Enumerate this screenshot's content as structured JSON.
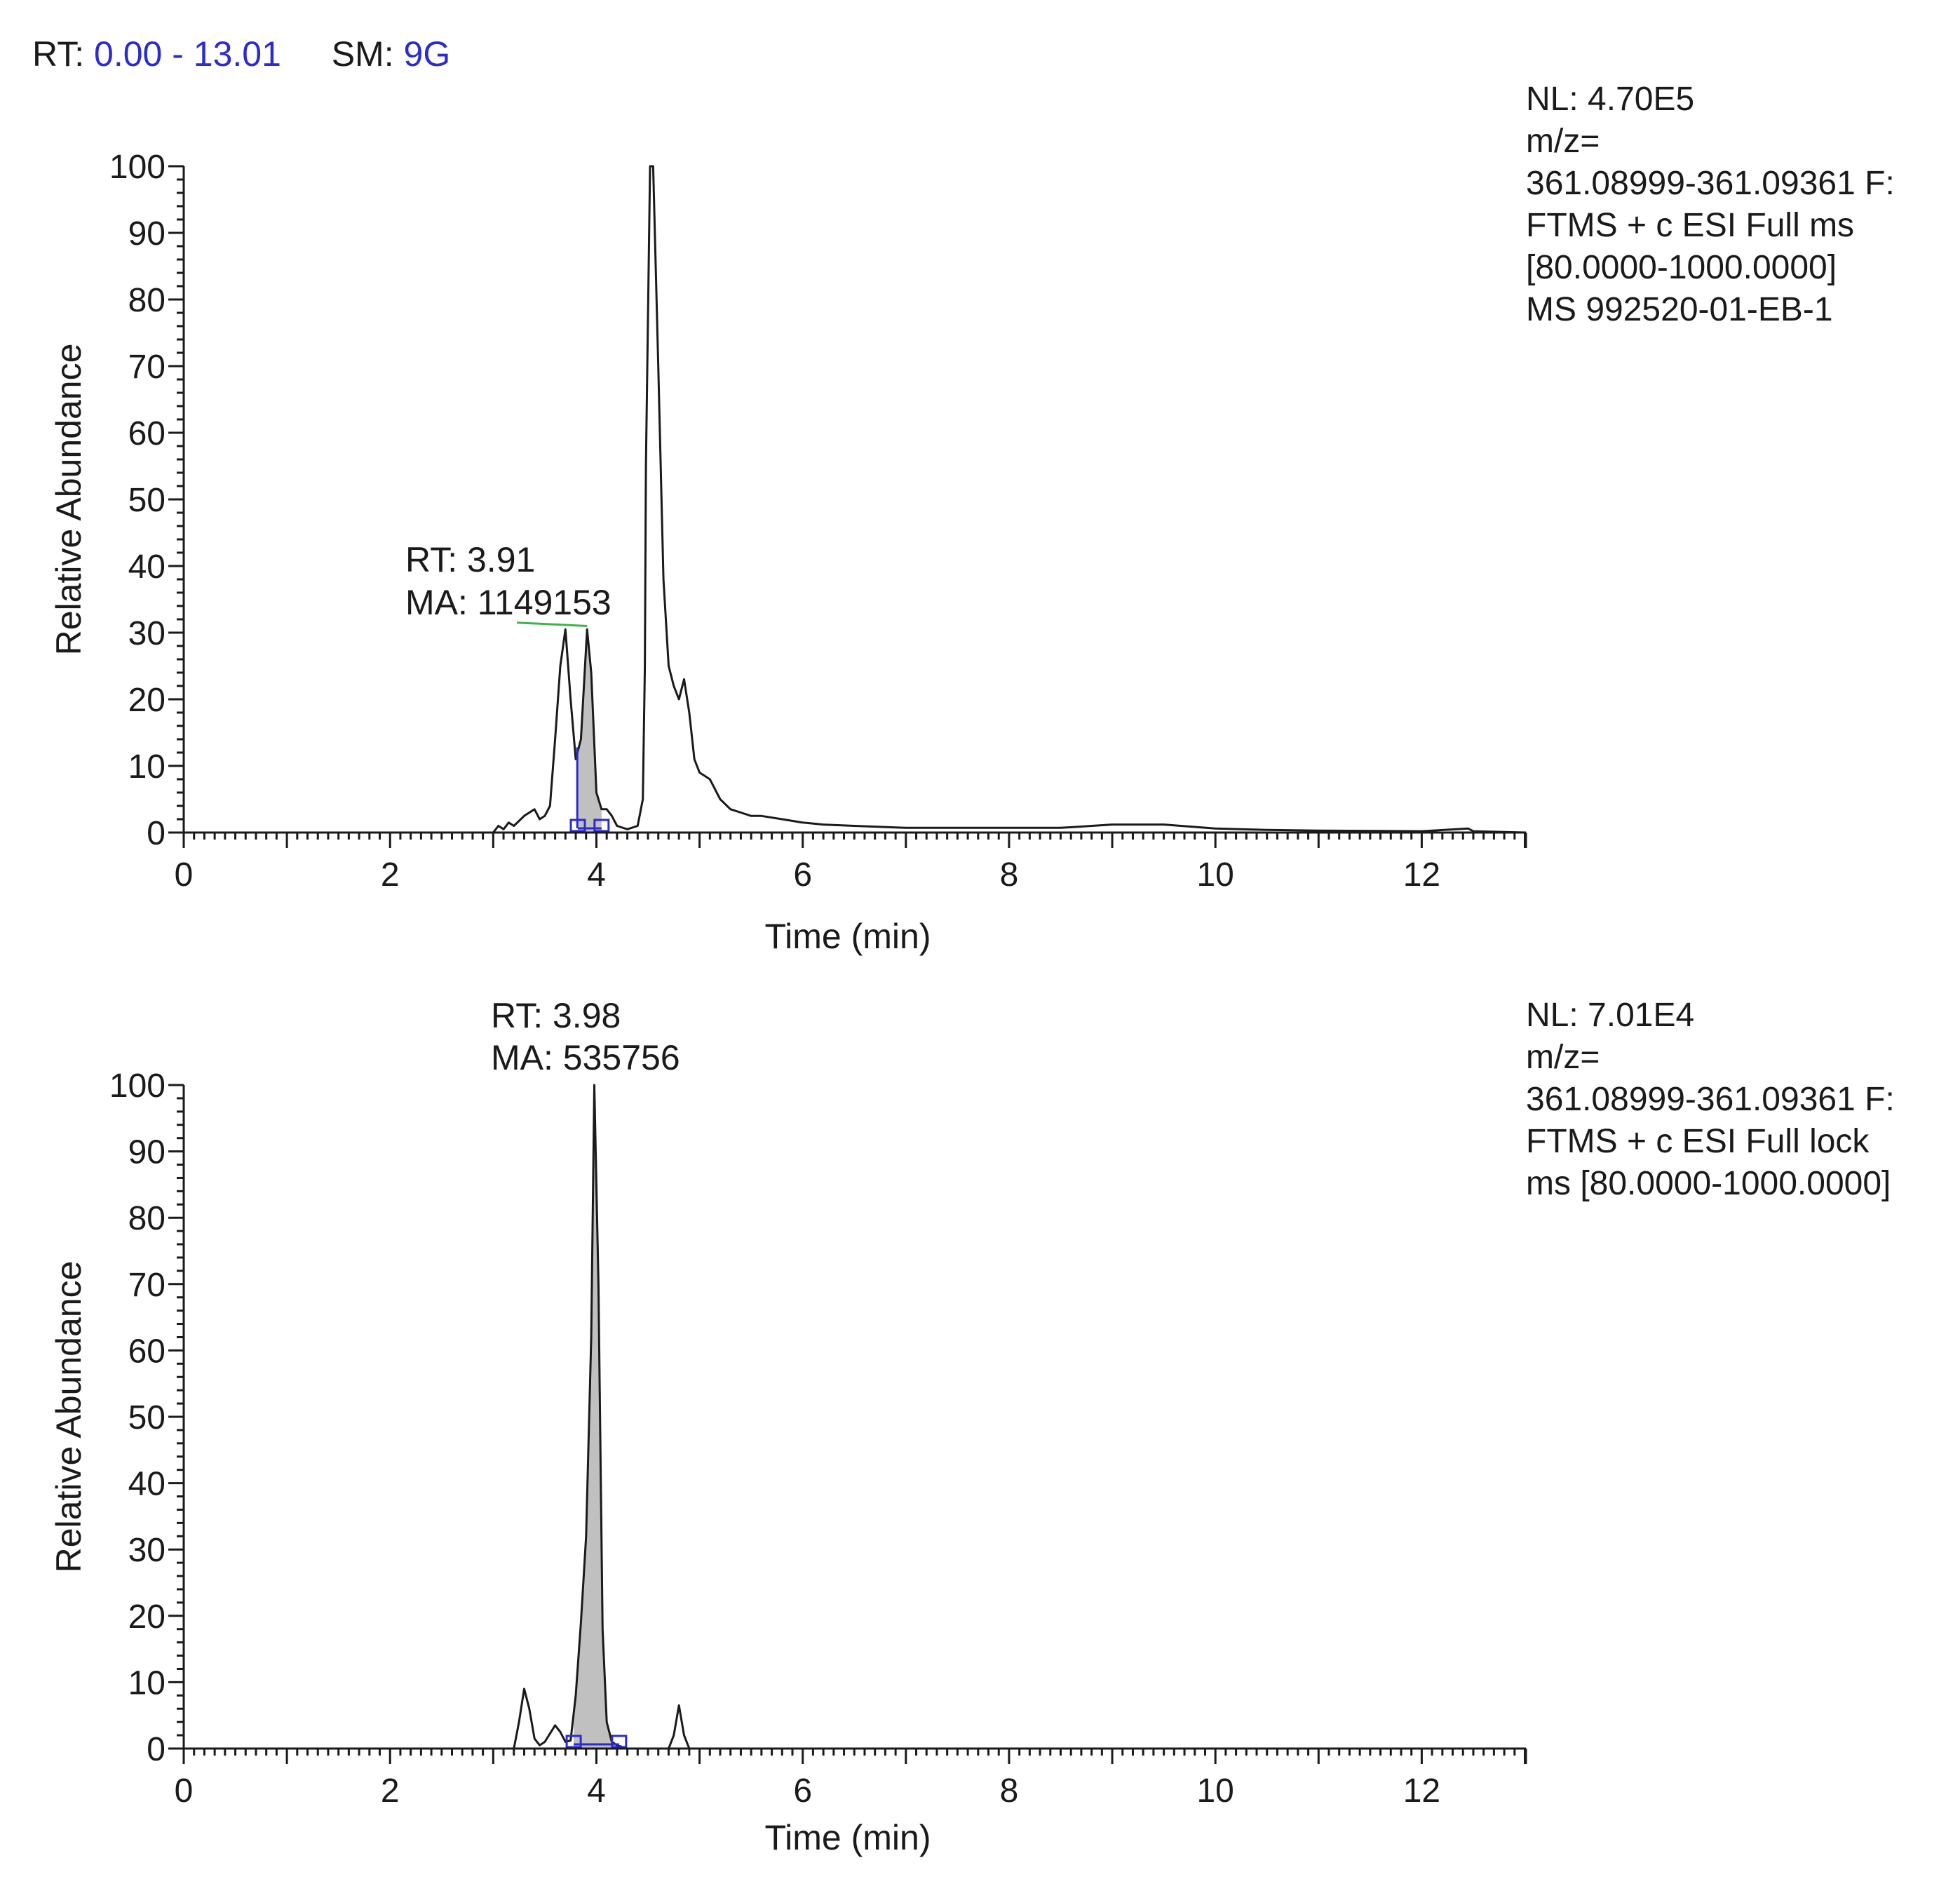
{
  "header": {
    "rt_label": "RT:",
    "rt_value": "0.00 - 13.01",
    "sm_label": "SM:",
    "sm_value": "9G"
  },
  "panels": [
    {
      "info_lines": [
        "NL: 4.70E5",
        "m/z=",
        "361.08999-361.09361 F:",
        "FTMS + c ESI Full ms",
        "[80.0000-1000.0000]",
        "MS 992520-01-EB-1"
      ],
      "peak_rt": "RT: 3.91",
      "peak_ma": "MA: 1149153"
    },
    {
      "info_lines": [
        "NL: 7.01E4",
        "m/z=",
        "361.08999-361.09361 F:",
        "FTMS + c ESI Full lock",
        "ms [80.0000-1000.0000]"
      ],
      "peak_rt": "RT: 3.98",
      "peak_ma": "MA: 535756"
    }
  ],
  "chart_data": [
    {
      "type": "line",
      "xlabel": "Time (min)",
      "ylabel": "Relative Abundance",
      "xlim": [
        0,
        13.01
      ],
      "ylim": [
        0,
        100
      ],
      "x_ticks": [
        0,
        2,
        4,
        6,
        8,
        10,
        12
      ],
      "y_ticks": [
        0,
        10,
        20,
        30,
        40,
        50,
        60,
        70,
        80,
        90,
        100
      ],
      "line_color": "#1a1a1a",
      "fill_color": "#c0c0c0",
      "marker_color": "#2b2bd0",
      "series": [
        {
          "x": [
            0,
            3.0,
            3.05,
            3.1,
            3.15,
            3.2,
            3.3,
            3.4,
            3.45,
            3.5,
            3.55,
            3.6,
            3.65,
            3.7,
            3.75,
            3.8,
            3.85,
            3.91,
            3.95,
            4.0,
            4.05,
            4.1,
            4.15,
            4.2,
            4.3,
            4.4,
            4.45,
            4.47,
            4.48,
            4.52,
            4.53,
            4.55,
            4.6,
            4.65,
            4.7,
            4.75,
            4.8,
            4.85,
            4.9,
            4.95,
            5.0,
            5.1,
            5.2,
            5.3,
            5.4,
            5.5,
            5.6,
            5.8,
            6.0,
            6.2,
            6.5,
            7.0,
            7.5,
            8.0,
            8.5,
            9.0,
            9.5,
            10.0,
            10.5,
            11.0,
            12.0,
            12.45,
            12.5,
            13.01
          ],
          "y": [
            0,
            0,
            1,
            0.5,
            1.5,
            1,
            2.5,
            3.5,
            2,
            2.5,
            4,
            14,
            25,
            30.5,
            20,
            11,
            14,
            30.5,
            24,
            6,
            3.5,
            3.5,
            2.5,
            1,
            0.5,
            1,
            5,
            25,
            55,
            100,
            100,
            100,
            70,
            38,
            25,
            22,
            20,
            23,
            18,
            11,
            9,
            8,
            5,
            3.5,
            3,
            2.5,
            2.5,
            2,
            1.5,
            1.2,
            1,
            0.7,
            0.7,
            0.7,
            0.7,
            1.2,
            1.2,
            0.6,
            0.4,
            0.3,
            0.2,
            0.6,
            0.2,
            0
          ],
          "peak_start": 3.82,
          "peak_end": 4.05,
          "peak_rt": 3.91,
          "baseline_from": [
            3.23,
            31.5
          ],
          "baseline_to": [
            3.91,
            31.0
          ]
        }
      ]
    },
    {
      "type": "line",
      "xlabel": "Time (min)",
      "ylabel": "Relative Abundance",
      "xlim": [
        0,
        13.01
      ],
      "ylim": [
        0,
        100
      ],
      "x_ticks": [
        0,
        2,
        4,
        6,
        8,
        10,
        12
      ],
      "y_ticks": [
        0,
        10,
        20,
        30,
        40,
        50,
        60,
        70,
        80,
        90,
        100
      ],
      "line_color": "#1a1a1a",
      "fill_color": "#c0c0c0",
      "marker_color": "#2b2bd0",
      "series": [
        {
          "x": [
            0,
            3.2,
            3.25,
            3.3,
            3.35,
            3.4,
            3.45,
            3.5,
            3.6,
            3.65,
            3.7,
            3.75,
            3.8,
            3.85,
            3.9,
            3.95,
            3.98,
            4.02,
            4.06,
            4.1,
            4.15,
            4.2,
            4.3,
            4.5,
            4.7,
            4.75,
            4.8,
            4.85,
            4.9,
            5.0,
            13.01
          ],
          "y": [
            0,
            0,
            4,
            9,
            6,
            1.5,
            0.5,
            1,
            3.5,
            2.5,
            1,
            1.2,
            8,
            19,
            32,
            62,
            100,
            70,
            18,
            4,
            1,
            0.5,
            0,
            0,
            0,
            2,
            6.5,
            2,
            0,
            0,
            0
          ],
          "peak_start": 3.78,
          "peak_end": 4.22,
          "peak_rt": 3.98
        }
      ]
    }
  ]
}
